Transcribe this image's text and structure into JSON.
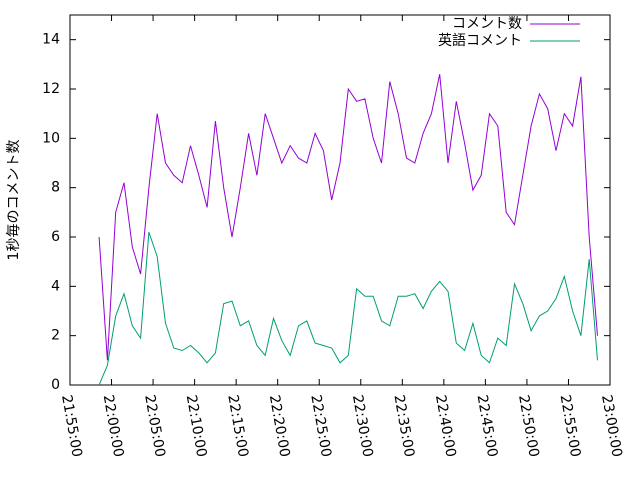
{
  "chart_data": {
    "type": "line",
    "ylabel": "1秒毎のコメント数",
    "x": [
      "21:58:30",
      "21:59:30",
      "22:00:30",
      "22:01:30",
      "22:02:30",
      "22:03:30",
      "22:04:30",
      "22:05:30",
      "22:06:30",
      "22:07:30",
      "22:08:30",
      "22:09:30",
      "22:10:30",
      "22:11:30",
      "22:12:30",
      "22:13:30",
      "22:14:30",
      "22:15:30",
      "22:16:30",
      "22:17:30",
      "22:18:30",
      "22:19:30",
      "22:20:30",
      "22:21:30",
      "22:22:30",
      "22:23:30",
      "22:24:30",
      "22:25:30",
      "22:26:30",
      "22:27:30",
      "22:28:30",
      "22:29:30",
      "22:30:30",
      "22:31:30",
      "22:32:30",
      "22:33:30",
      "22:34:30",
      "22:35:30",
      "22:36:30",
      "22:37:30",
      "22:38:30",
      "22:39:30",
      "22:40:30",
      "22:41:30",
      "22:42:30",
      "22:43:30",
      "22:44:30",
      "22:45:30",
      "22:46:30",
      "22:47:30",
      "22:48:30",
      "22:49:30",
      "22:50:30",
      "22:51:30",
      "22:52:30",
      "22:53:30",
      "22:54:30",
      "22:55:30",
      "22:56:30",
      "22:57:30",
      "22:58:30"
    ],
    "series": [
      {
        "name": "コメント数",
        "color": "#9400d3",
        "values": [
          6,
          1,
          7,
          8.2,
          5.6,
          4.5,
          8,
          11,
          9,
          8.5,
          8.2,
          9.7,
          8.5,
          7.2,
          10.7,
          8,
          6,
          8,
          10.2,
          8.5,
          11,
          10,
          9,
          9.7,
          9.2,
          9,
          10.2,
          9.5,
          7.5,
          9,
          12,
          11.5,
          11.6,
          10,
          9,
          12.3,
          11,
          9.2,
          9,
          10.2,
          11,
          12.6,
          9,
          11.5,
          9.8,
          7.9,
          8.5,
          11,
          10.5,
          7,
          6.5,
          8.5,
          10.5,
          11.8,
          11.2,
          9.5,
          11,
          10.5,
          12.5,
          6,
          2
        ]
      },
      {
        "name": "英語コメント",
        "color": "#009e73",
        "values": [
          0,
          0.8,
          2.8,
          3.7,
          2.4,
          1.9,
          6.2,
          5.2,
          2.5,
          1.5,
          1.4,
          1.6,
          1.3,
          0.9,
          1.3,
          3.3,
          3.4,
          2.4,
          2.6,
          1.6,
          1.2,
          2.7,
          1.8,
          1.2,
          2.4,
          2.6,
          1.7,
          1.6,
          1.5,
          0.9,
          1.2,
          3.9,
          3.6,
          3.6,
          2.6,
          2.4,
          3.6,
          3.6,
          3.7,
          3.1,
          3.8,
          4.2,
          3.8,
          1.7,
          1.4,
          2.5,
          1.2,
          0.9,
          1.9,
          1.6,
          4.1,
          3.3,
          2.2,
          2.8,
          3,
          3.5,
          4.4,
          3,
          2,
          5.1,
          1
        ]
      }
    ],
    "xlim": [
      "21:55:00",
      "23:00:00"
    ],
    "xticks": [
      "21:55:00",
      "22:00:00",
      "22:05:00",
      "22:10:00",
      "22:15:00",
      "22:20:00",
      "22:25:00",
      "22:30:00",
      "22:35:00",
      "22:40:00",
      "22:45:00",
      "22:50:00",
      "22:55:00",
      "23:00:00"
    ],
    "ylim": [
      0,
      15
    ],
    "yticks": [
      0,
      2,
      4,
      6,
      8,
      10,
      12,
      14
    ],
    "legend": "top-right"
  }
}
